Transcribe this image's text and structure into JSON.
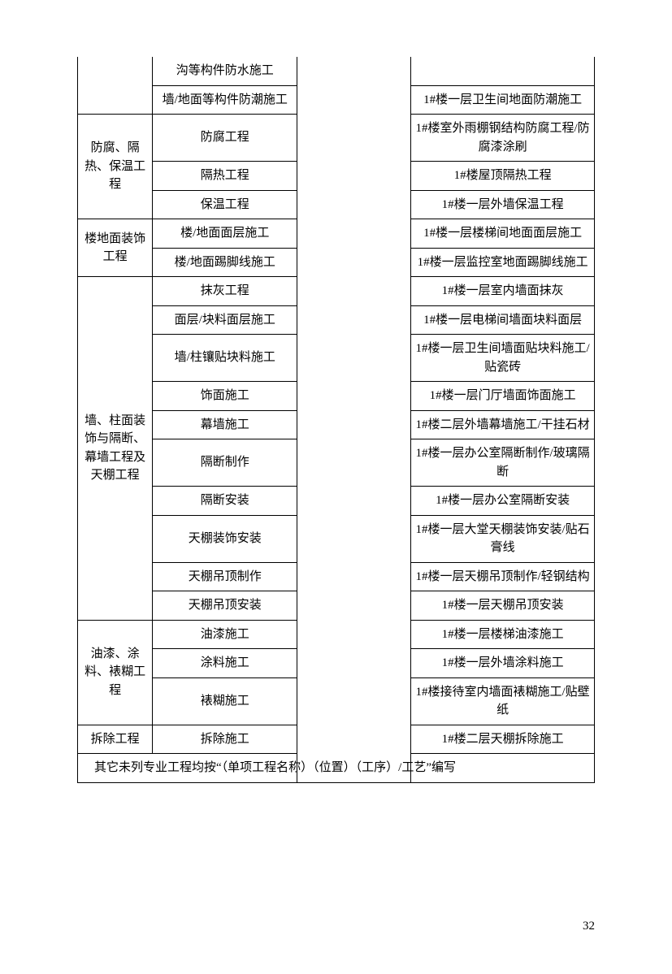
{
  "table": {
    "rows": [
      {
        "col1": "",
        "col1_rowspan": 2,
        "col2": "沟等构件防水施工",
        "col3": "",
        "col4": "",
        "no_top": true
      },
      {
        "col2": "墙/地面等构件防潮施工",
        "col3": "",
        "col4": "1#楼一层卫生间地面防潮施工"
      },
      {
        "col1": "防腐、隔热、保温工程",
        "col1_rowspan": 3,
        "col2": "防腐工程",
        "col3": "",
        "col4": "1#楼室外雨棚钢结构防腐工程/防腐漆涂刷"
      },
      {
        "col2": "隔热工程",
        "col3": "",
        "col4": "1#楼屋顶隔热工程"
      },
      {
        "col2": "保温工程",
        "col3": "",
        "col4": "1#楼一层外墙保温工程"
      },
      {
        "col1": "楼地面装饰工程",
        "col1_rowspan": 2,
        "col2": "楼/地面面层施工",
        "col3": "",
        "col4": "1#楼一层楼梯间地面面层施工"
      },
      {
        "col2": "楼/地面踢脚线施工",
        "col3": "",
        "col4": "1#楼一层监控室地面踢脚线施工"
      },
      {
        "col1": "墙、柱面装饰与隔断、幕墙工程及天棚工程",
        "col1_rowspan": 10,
        "col2": "抹灰工程",
        "col3": "",
        "col4": "1#楼一层室内墙面抹灰"
      },
      {
        "col2": "面层/块料面层施工",
        "col3": "",
        "col4": "1#楼一层电梯间墙面块料面层"
      },
      {
        "col2": "墙/柱镶贴块料施工",
        "col3": "",
        "col4": "1#楼一层卫生间墙面贴块料施工/贴瓷砖"
      },
      {
        "col2": "饰面施工",
        "col3": "",
        "col4": "1#楼一层门厅墙面饰面施工"
      },
      {
        "col2": "幕墙施工",
        "col3": "",
        "col4": "1#楼二层外墙幕墙施工/干挂石材"
      },
      {
        "col2": "隔断制作",
        "col3": "",
        "col4": "1#楼一层办公室隔断制作/玻璃隔断"
      },
      {
        "col2": "隔断安装",
        "col3": "",
        "col4": "1#楼一层办公室隔断安装"
      },
      {
        "col2": "天棚装饰安装",
        "col3": "",
        "col4": "1#楼一层大堂天棚装饰安装/贴石膏线"
      },
      {
        "col2": "天棚吊顶制作",
        "col3": "",
        "col4": "1#楼一层天棚吊顶制作/轻钢结构"
      },
      {
        "col2": "天棚吊顶安装",
        "col3": "",
        "col4": "1#楼一层天棚吊顶安装"
      },
      {
        "col1": "油漆、涂料、裱糊工程",
        "col1_rowspan": 3,
        "col2": "油漆施工",
        "col3": "",
        "col4": "1#楼一层楼梯油漆施工"
      },
      {
        "col2": "涂料施工",
        "col3": "",
        "col4": "1#楼一层外墙涂料施工"
      },
      {
        "col2": "裱糊施工",
        "col3": "",
        "col4": "1#楼接待室内墙面裱糊施工/贴壁纸"
      },
      {
        "col1": "拆除工程",
        "col1_rowspan": 1,
        "col2": "拆除施工",
        "col3": "",
        "col4": "1#楼二层天棚拆除施工"
      }
    ],
    "col3_rowspan": 22,
    "footer": "其它未列专业工程均按“（单项工程名称）（位置）（工序）/工艺”编写"
  },
  "page_number": "32",
  "style": {
    "border_color": "#000000",
    "background_color": "#ffffff",
    "text_color": "#000000",
    "font_size": 15,
    "font_family": "SimSun"
  }
}
